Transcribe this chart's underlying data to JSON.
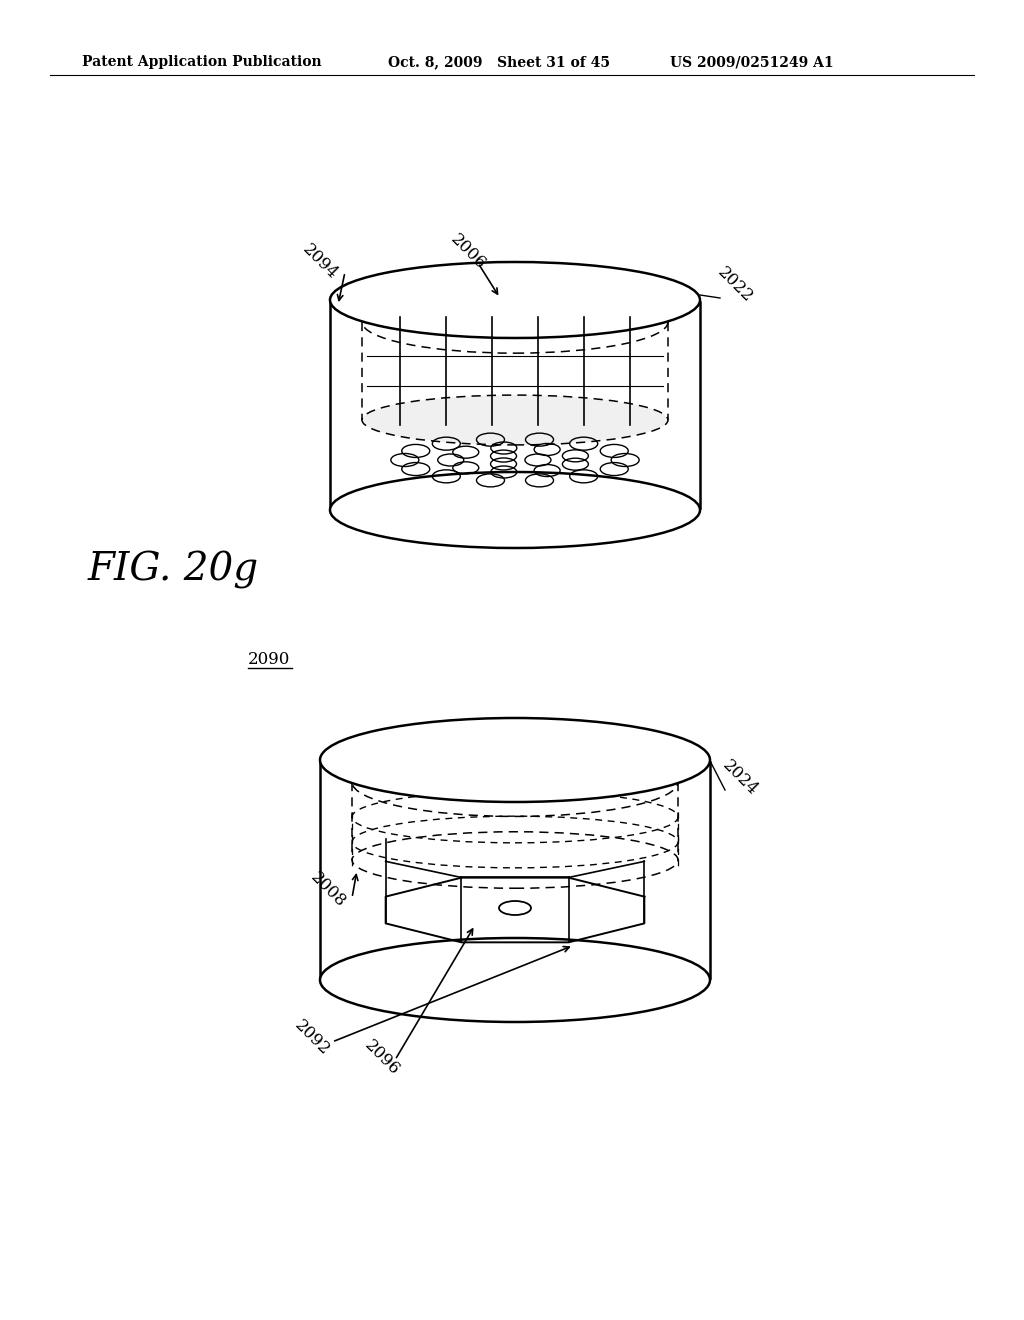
{
  "bg_color": "#ffffff",
  "header_left": "Patent Application Publication",
  "header_mid": "Oct. 8, 2009   Sheet 31 of 45",
  "header_right": "US 2009/0251249 A1",
  "fig_label": "FIG. 20g",
  "label_2090": "2090"
}
